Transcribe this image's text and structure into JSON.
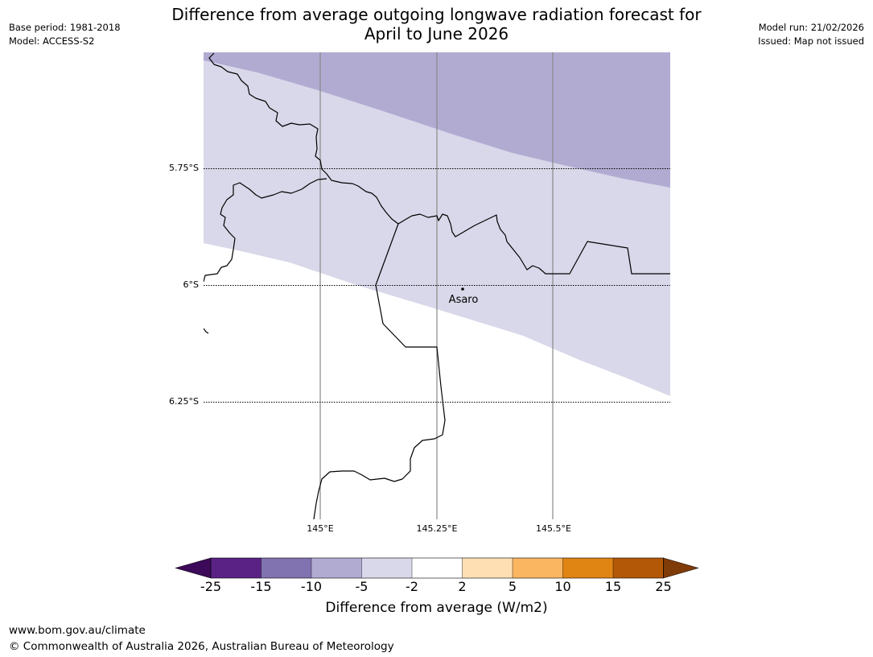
{
  "title": {
    "line1": "Difference from average outgoing longwave radiation forecast for",
    "line2": "April to June 2026"
  },
  "meta_left": {
    "base_period": "Base period: 1981-2018",
    "model": "Model: ACCESS-S2"
  },
  "meta_right": {
    "model_run": "Model run: 21/02/2026",
    "issued": "Issued: Map not issued"
  },
  "map": {
    "lat_labels": [
      "5.75°S",
      "6°S",
      "6.25°S"
    ],
    "lon_labels": [
      "145°E",
      "145.25°E",
      "145.5°E"
    ],
    "place_label": "Asaro",
    "fill_colors": {
      "band_-10_-5": "#b1abd2",
      "band_-5_-2": "#d8d8ea"
    }
  },
  "colorbar": {
    "title": "Difference from average (W/m2)",
    "ticks": [
      "-25",
      "-15",
      "-10",
      "-5",
      "-2",
      "2",
      "5",
      "10",
      "15",
      "25"
    ],
    "colors": [
      "#3c0a58",
      "#5a2285",
      "#8173b0",
      "#b1abd2",
      "#d8d8ea",
      "#ffffff",
      "#fedfb3",
      "#fbb661",
      "#e08414",
      "#b35806",
      "#7f3b08"
    ]
  },
  "footer": {
    "url": "www.bom.gov.au/climate",
    "copyright": "© Commonwealth of Australia 2026, Australian Bureau of Meteorology"
  }
}
